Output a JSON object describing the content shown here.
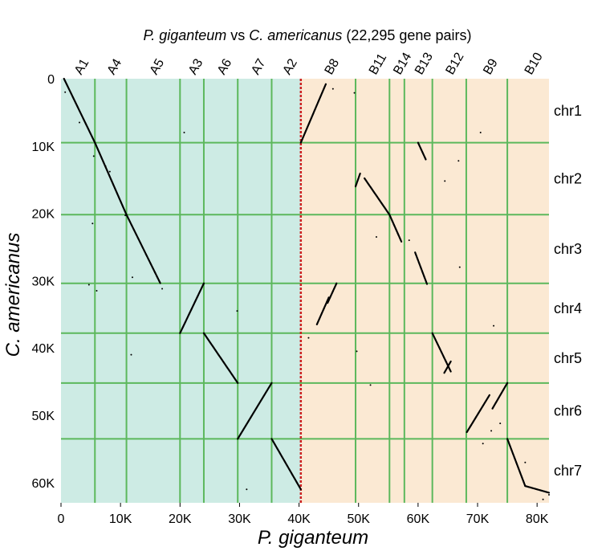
{
  "chart_data": {
    "type": "scatter",
    "title": {
      "species_x": "P. giganteum",
      "vs": " vs ",
      "species_y": "C. americanus",
      "suffix": " (22,295 gene pairs)"
    },
    "xlabel": "P. giganteum",
    "ylabel": "C. americanus",
    "xlim": [
      0,
      82000
    ],
    "ylim": [
      0,
      63000
    ],
    "x_ticks": [
      {
        "value": 0,
        "label": "0"
      },
      {
        "value": 10000,
        "label": "10K"
      },
      {
        "value": 20000,
        "label": "20K"
      },
      {
        "value": 30000,
        "label": "30K"
      },
      {
        "value": 40000,
        "label": "40K"
      },
      {
        "value": 50000,
        "label": "50K"
      },
      {
        "value": 60000,
        "label": "60K"
      },
      {
        "value": 70000,
        "label": "70K"
      },
      {
        "value": 80000,
        "label": "80K"
      }
    ],
    "y_ticks": [
      {
        "value": 0,
        "label": "0"
      },
      {
        "value": 10000,
        "label": "10K"
      },
      {
        "value": 20000,
        "label": "20K"
      },
      {
        "value": 30000,
        "label": "30K"
      },
      {
        "value": 40000,
        "label": "40K"
      },
      {
        "value": 50000,
        "label": "50K"
      },
      {
        "value": 60000,
        "label": "60K"
      }
    ],
    "x_chromosomes": [
      {
        "name": "A1",
        "start": 0,
        "end": 5700
      },
      {
        "name": "A4",
        "start": 5700,
        "end": 11000
      },
      {
        "name": "A5",
        "start": 11000,
        "end": 20000
      },
      {
        "name": "A3",
        "start": 20000,
        "end": 24000
      },
      {
        "name": "A6",
        "start": 24000,
        "end": 29700
      },
      {
        "name": "A7",
        "start": 29700,
        "end": 35400
      },
      {
        "name": "A2",
        "start": 35400,
        "end": 40300
      },
      {
        "name": "B8",
        "start": 40300,
        "end": 49500
      },
      {
        "name": "B11",
        "start": 49500,
        "end": 55200
      },
      {
        "name": "B14",
        "start": 55200,
        "end": 57700
      },
      {
        "name": "B13",
        "start": 57700,
        "end": 62400
      },
      {
        "name": "B12",
        "start": 62400,
        "end": 68100
      },
      {
        "name": "B9",
        "start": 68100,
        "end": 75000
      },
      {
        "name": "B10",
        "start": 75000,
        "end": 82000
      }
    ],
    "y_chromosomes": [
      {
        "name": "chr1",
        "start": 0,
        "end": 9500
      },
      {
        "name": "chr2",
        "start": 9500,
        "end": 20200
      },
      {
        "name": "chr3",
        "start": 20200,
        "end": 30400
      },
      {
        "name": "chr4",
        "start": 30400,
        "end": 37800
      },
      {
        "name": "chr5",
        "start": 37800,
        "end": 45200
      },
      {
        "name": "chr6",
        "start": 45200,
        "end": 53500
      },
      {
        "name": "chr7",
        "start": 53500,
        "end": 63000
      }
    ],
    "subgenome_split": 40300,
    "background_colors": {
      "A": "#cdebe4",
      "B": "#fbe9d3"
    },
    "grid_color": "#5cb85c",
    "split_line_color": "#cc1f1f",
    "point_color": "#000000",
    "grid": true,
    "series": [
      {
        "segments": [
          {
            "x": [
              500,
              5700
            ],
            "y": [
              0,
              9500
            ]
          },
          {
            "x": [
              5700,
              11000
            ],
            "y": [
              9500,
              20200
            ]
          },
          {
            "x": [
              11000,
              16700
            ],
            "y": [
              20200,
              30400
            ]
          },
          {
            "x": [
              20000,
              24000
            ],
            "y": [
              37800,
              30400
            ]
          },
          {
            "x": [
              24000,
              29700
            ],
            "y": [
              37800,
              45200
            ]
          },
          {
            "x": [
              29700,
              35400
            ],
            "y": [
              53500,
              45200
            ]
          },
          {
            "x": [
              35400,
              40300
            ],
            "y": [
              53500,
              61000
            ]
          },
          {
            "x": [
              40300,
              44500
            ],
            "y": [
              9500,
              800
            ]
          },
          {
            "x": [
              49500,
              50300
            ],
            "y": [
              16000,
              14000
            ]
          },
          {
            "x": [
              51000,
              55200
            ],
            "y": [
              14800,
              20200
            ]
          },
          {
            "x": [
              55200,
              57200
            ],
            "y": [
              20200,
              24200
            ]
          },
          {
            "x": [
              59500,
              61500
            ],
            "y": [
              25800,
              30500
            ]
          },
          {
            "x": [
              43000,
              45000
            ],
            "y": [
              36500,
              32500
            ]
          },
          {
            "x": [
              44800,
              46300
            ],
            "y": [
              33300,
              30400
            ]
          },
          {
            "x": [
              60000,
              61300
            ],
            "y": [
              9500,
              12000
            ]
          },
          {
            "x": [
              62400,
              65500
            ],
            "y": [
              37800,
              43500
            ]
          },
          {
            "x": [
              64400,
              65500
            ],
            "y": [
              43700,
              42000
            ]
          },
          {
            "x": [
              68200,
              72000
            ],
            "y": [
              52500,
              47000
            ]
          },
          {
            "x": [
              72500,
              75000
            ],
            "y": [
              49000,
              45200
            ]
          },
          {
            "x": [
              75000,
              78000
            ],
            "y": [
              53500,
              60500
            ]
          },
          {
            "x": [
              78000,
              82000
            ],
            "y": [
              60500,
              61500
            ]
          }
        ],
        "dots": [
          [
            700,
            2000
          ],
          [
            3100,
            6500
          ],
          [
            7500,
            13000
          ],
          [
            8200,
            13800
          ],
          [
            10800,
            20300
          ],
          [
            15800,
            28800
          ],
          [
            17000,
            31200
          ],
          [
            20700,
            8000
          ],
          [
            5500,
            11500
          ],
          [
            4700,
            30600
          ],
          [
            6000,
            31500
          ],
          [
            5300,
            21500
          ],
          [
            12000,
            29500
          ],
          [
            11800,
            41000
          ],
          [
            29600,
            34500
          ],
          [
            31200,
            61000
          ],
          [
            41600,
            38500
          ],
          [
            49700,
            40500
          ],
          [
            52000,
            45500
          ],
          [
            45700,
            1500
          ],
          [
            49300,
            2100
          ],
          [
            64500,
            15200
          ],
          [
            67000,
            28000
          ],
          [
            66800,
            12200
          ],
          [
            70500,
            8000
          ],
          [
            72700,
            36700
          ],
          [
            73800,
            51200
          ],
          [
            72300,
            52300
          ],
          [
            70900,
            54200
          ],
          [
            78000,
            57000
          ],
          [
            81000,
            62500
          ],
          [
            82000,
            61800
          ],
          [
            58500,
            24000
          ],
          [
            53000,
            23500
          ]
        ]
      }
    ]
  }
}
